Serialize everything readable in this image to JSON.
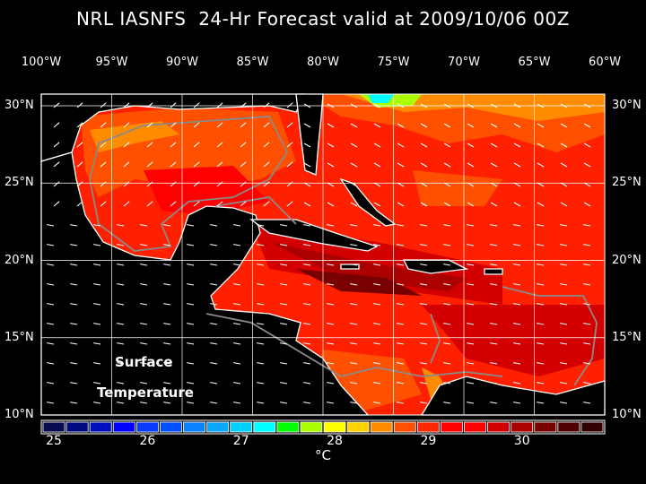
{
  "title": "NRL IASNFS  24-Hr Forecast valid at 2009/10/06 00Z",
  "lon_labels": [
    "100°W",
    "95°W",
    "90°W",
    "85°W",
    "80°W",
    "75°W",
    "70°W",
    "65°W",
    "60°W"
  ],
  "lon_values": [
    -100,
    -95,
    -90,
    -85,
    -80,
    -75,
    -70,
    -65,
    -60
  ],
  "lat_labels": [
    "30°N",
    "25°N",
    "20°N",
    "15°N",
    "10°N"
  ],
  "lat_values": [
    30,
    25,
    20,
    15,
    10
  ],
  "map_label_line1": "Surface",
  "map_label_line2": "Temperature",
  "colorbar": {
    "colors": [
      "#0a0a50",
      "#000a80",
      "#0010c0",
      "#0000ff",
      "#0a3cff",
      "#0050ff",
      "#0a82ff",
      "#0aa8ff",
      "#00d2ff",
      "#00ffff",
      "#00ff00",
      "#aaff00",
      "#ffff00",
      "#ffd200",
      "#ff8c00",
      "#ff5000",
      "#ff2800",
      "#ff0000",
      "#ff0000",
      "#d20000",
      "#aa0000",
      "#780000",
      "#500000",
      "#320000"
    ],
    "tick_labels": [
      "25",
      "26",
      "27",
      "28",
      "29",
      "30"
    ],
    "unit": "°C"
  }
}
